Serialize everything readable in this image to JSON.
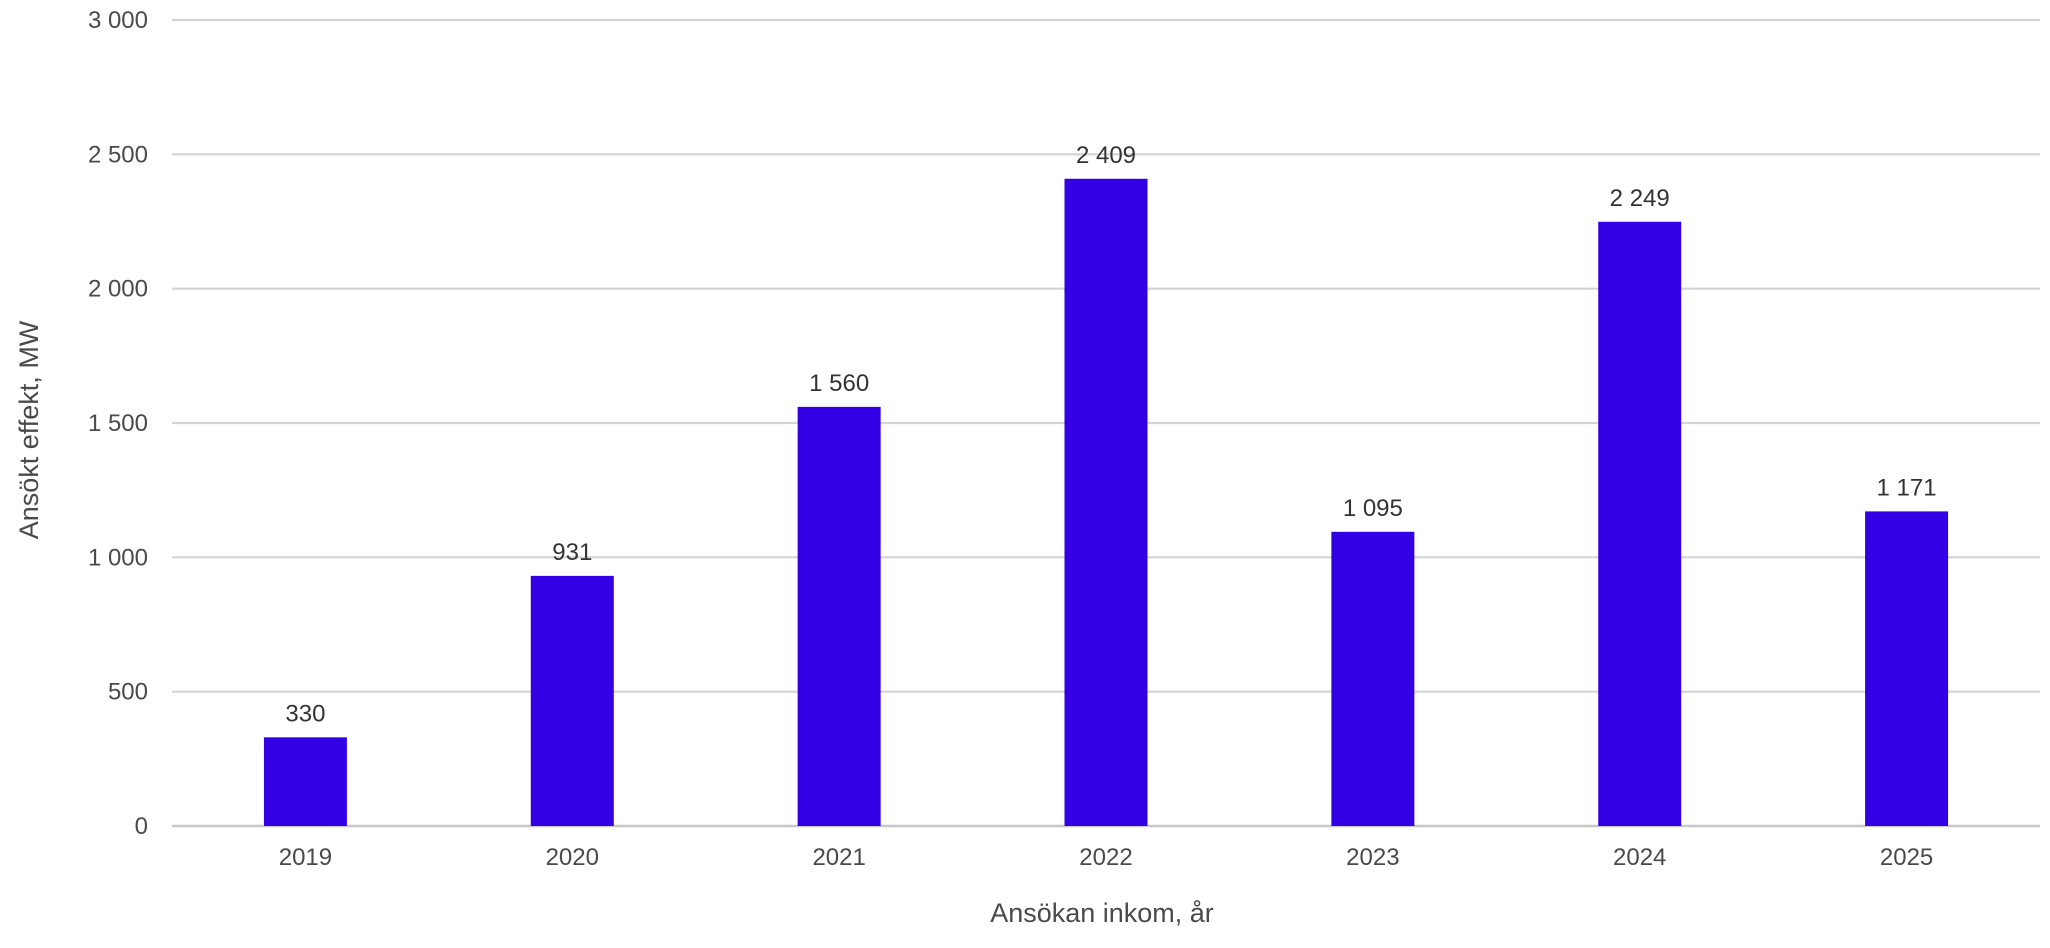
{
  "chart_data": {
    "type": "bar",
    "title": "",
    "xlabel": "Ansökan inkom, år",
    "ylabel": "Ansökt effekt, MW",
    "categories": [
      "2019",
      "2020",
      "2021",
      "2022",
      "2023",
      "2024",
      "2025"
    ],
    "values": [
      330,
      931,
      1560,
      2409,
      1095,
      2249,
      1171
    ],
    "value_labels": [
      "330",
      "931",
      "1 560",
      "2 409",
      "1 095",
      "2 249",
      "1 171"
    ],
    "ylim": [
      0,
      3000
    ],
    "yticks": [
      0,
      500,
      1000,
      1500,
      2000,
      2500,
      3000
    ],
    "ytick_labels": [
      "0",
      "500",
      "1 000",
      "1 500",
      "2 000",
      "2 500",
      "3 000"
    ],
    "grid": true,
    "legend": "none",
    "bar_color": "#3300e6",
    "grid_color": "#d4d4d4",
    "text_color": "#4a4a4a"
  }
}
